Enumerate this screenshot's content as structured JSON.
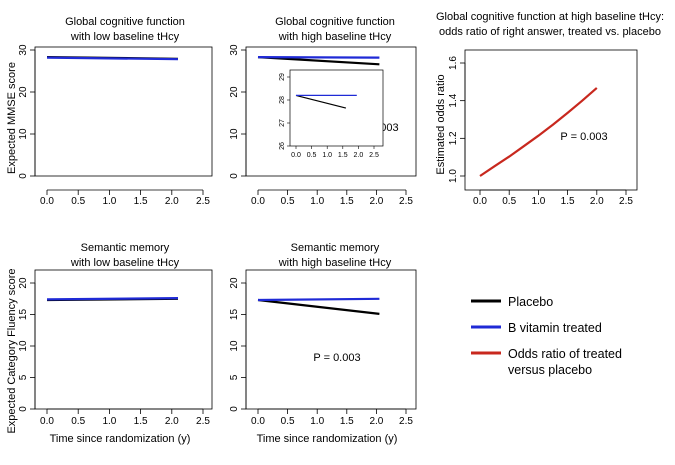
{
  "chart_data": [
    {
      "id": "p1",
      "type": "line",
      "title_lines": [
        "Global cognitive function",
        "with low baseline tHcy"
      ],
      "xlabel": "",
      "ylabel": "Expected MMSE score",
      "xlim": [
        0,
        2.5
      ],
      "ylim": [
        0,
        30
      ],
      "x_ticks": [
        "0.0",
        "0.5",
        "1.0",
        "1.5",
        "2.0",
        "2.5"
      ],
      "y_ticks": [
        "0",
        "10",
        "20",
        "30"
      ],
      "series": [
        {
          "color": "#000000",
          "x": [
            0,
            2.1
          ],
          "y": [
            28.3,
            27.9
          ]
        },
        {
          "color": "#1f2ad6",
          "x": [
            0,
            2.1
          ],
          "y": [
            28.2,
            27.8
          ]
        }
      ],
      "annotation": ""
    },
    {
      "id": "p2",
      "type": "line",
      "title_lines": [
        "Global cognitive function",
        "with high baseline tHcy"
      ],
      "xlabel": "",
      "ylabel": "",
      "xlim": [
        0,
        2.5
      ],
      "ylim": [
        0,
        30
      ],
      "x_ticks": [
        "0.0",
        "0.5",
        "1.0",
        "1.5",
        "2.0",
        "2.5"
      ],
      "y_ticks": [
        "0",
        "10",
        "20",
        "30"
      ],
      "series": [
        {
          "color": "#000000",
          "x": [
            0,
            2.05
          ],
          "y": [
            28.3,
            26.6
          ]
        },
        {
          "color": "#1f2ad6",
          "x": [
            0,
            2.05
          ],
          "y": [
            28.3,
            28.2
          ]
        }
      ],
      "annotation": "P = 0.003",
      "inset": {
        "xlim": [
          0,
          2.5
        ],
        "ylim": [
          26,
          29
        ],
        "x_ticks": [
          "0.0",
          "0.5",
          "1.0",
          "1.5",
          "2.0",
          "2.5"
        ],
        "y_ticks": [
          "26",
          "27",
          "28",
          "29"
        ],
        "series": [
          {
            "color": "#000000",
            "x": [
              0,
              1.6
            ],
            "y": [
              28.2,
              27.65
            ]
          },
          {
            "color": "#1f2ad6",
            "x": [
              0,
              1.95
            ],
            "y": [
              28.2,
              28.2
            ]
          }
        ]
      }
    },
    {
      "id": "p3",
      "type": "line",
      "title_lines": [
        "Global cognitive function at high baseline tHcy:",
        "odds ratio of right answer, treated vs. placebo"
      ],
      "xlabel": "",
      "ylabel": "Estimated odds ratio",
      "xlim": [
        0,
        2.5
      ],
      "ylim": [
        1.0,
        1.6
      ],
      "x_ticks": [
        "0.0",
        "0.5",
        "1.0",
        "1.5",
        "2.0",
        "2.5"
      ],
      "y_ticks": [
        "1.0",
        "1.2",
        "1.4",
        "1.6"
      ],
      "series": [
        {
          "color": "#c8281e",
          "x": [
            0,
            0.25,
            0.5,
            0.75,
            1.0,
            1.25,
            1.5,
            1.75,
            2.0
          ],
          "y": [
            1.0,
            1.052,
            1.103,
            1.158,
            1.214,
            1.273,
            1.335,
            1.4,
            1.468
          ]
        }
      ],
      "annotation": "P = 0.003"
    },
    {
      "id": "p4",
      "type": "line",
      "title_lines": [
        "Semantic memory",
        "with low baseline tHcy"
      ],
      "xlabel": "Time since randomization (y)",
      "ylabel": "Expected Category Fluency score",
      "xlim": [
        0,
        2.5
      ],
      "ylim": [
        0,
        20
      ],
      "x_ticks": [
        "0.0",
        "0.5",
        "1.0",
        "1.5",
        "2.0",
        "2.5"
      ],
      "y_ticks": [
        "0",
        "5",
        "10",
        "15",
        "20"
      ],
      "series": [
        {
          "color": "#000000",
          "x": [
            0,
            2.1
          ],
          "y": [
            17.3,
            17.5
          ]
        },
        {
          "color": "#1f2ad6",
          "x": [
            0,
            2.1
          ],
          "y": [
            17.4,
            17.6
          ]
        }
      ],
      "annotation": ""
    },
    {
      "id": "p5",
      "type": "line",
      "title_lines": [
        "Semantic memory",
        "with high baseline tHcy"
      ],
      "xlabel": "Time since randomization (y)",
      "ylabel": "",
      "xlim": [
        0,
        2.5
      ],
      "ylim": [
        0,
        20
      ],
      "x_ticks": [
        "0.0",
        "0.5",
        "1.0",
        "1.5",
        "2.0",
        "2.5"
      ],
      "y_ticks": [
        "0",
        "5",
        "10",
        "15",
        "20"
      ],
      "series": [
        {
          "color": "#000000",
          "x": [
            0,
            2.05
          ],
          "y": [
            17.3,
            15.1
          ]
        },
        {
          "color": "#1f2ad6",
          "x": [
            0,
            2.05
          ],
          "y": [
            17.3,
            17.5
          ]
        }
      ],
      "annotation": "P = 0.003"
    }
  ],
  "legend": {
    "placement": "bottom-right",
    "items": [
      {
        "lines": [
          "Placebo"
        ],
        "color": "#000000"
      },
      {
        "lines": [
          "B vitamin treated"
        ],
        "color": "#1f2ad6"
      },
      {
        "lines": [
          "Odds ratio of treated",
          "versus placebo"
        ],
        "color": "#c8281e"
      }
    ]
  }
}
